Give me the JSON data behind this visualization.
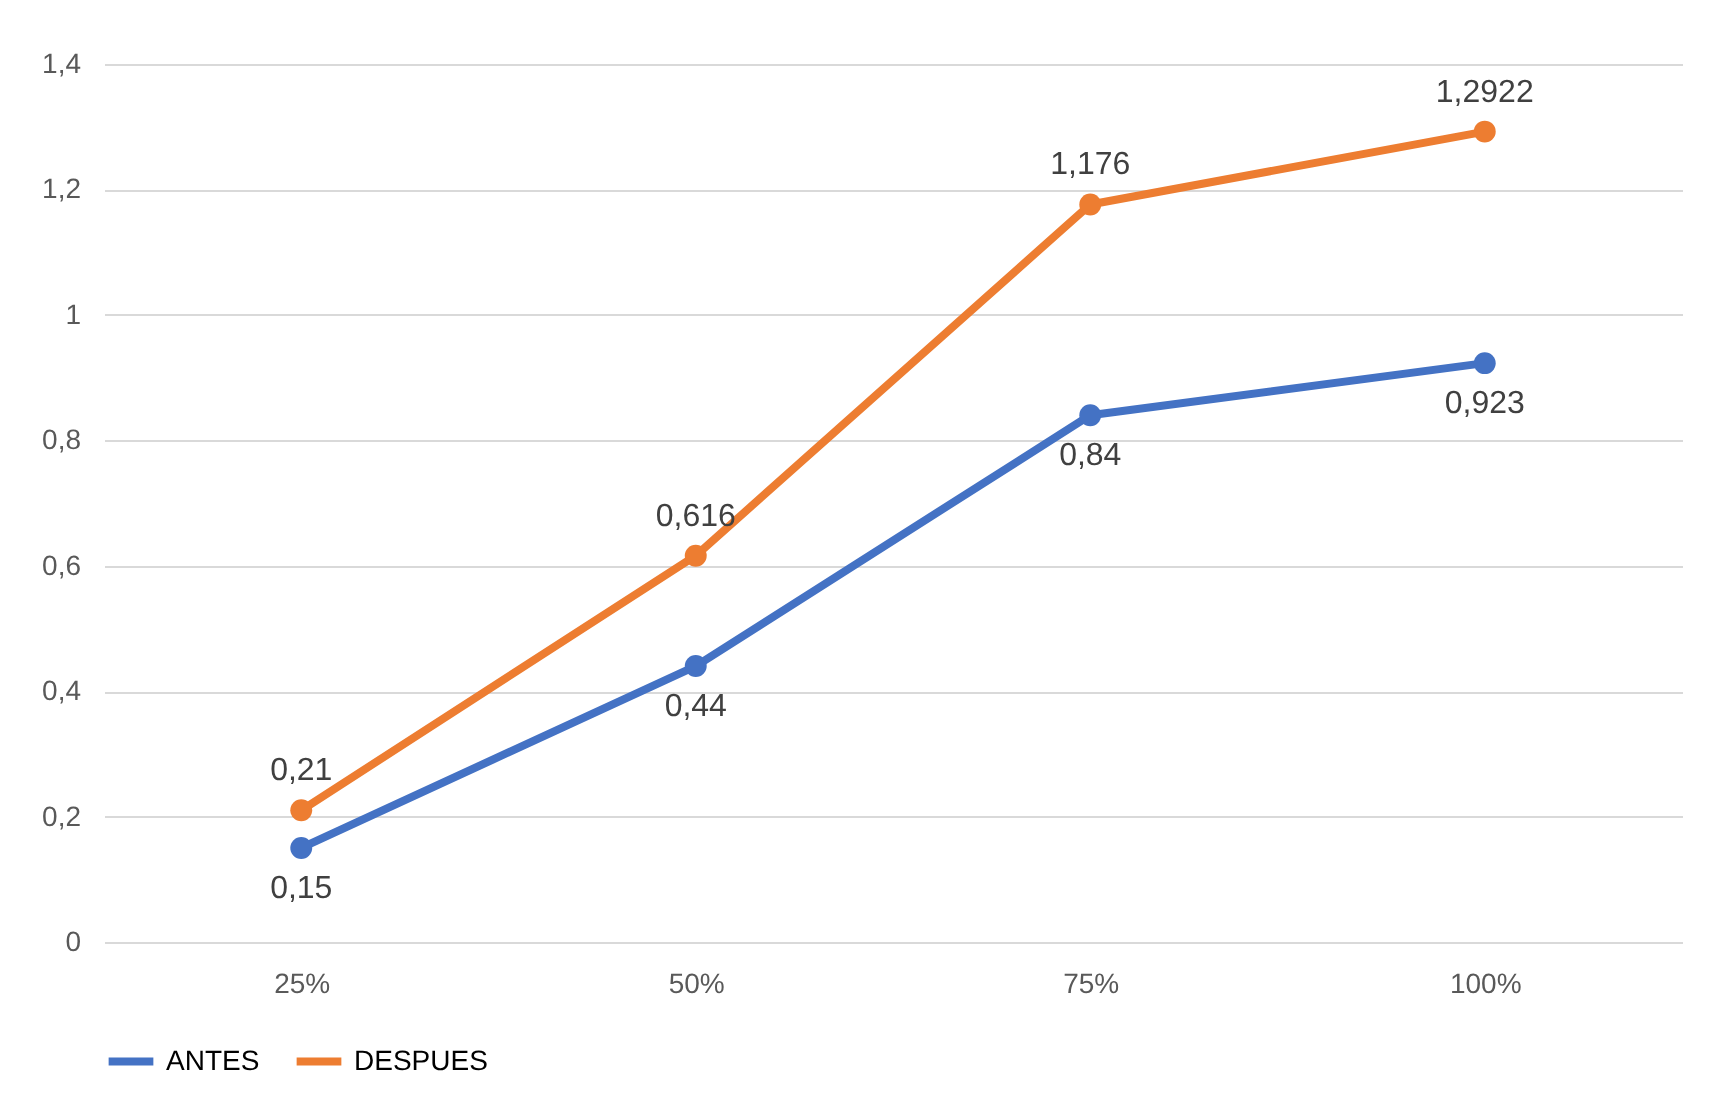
{
  "chart_data": {
    "type": "line",
    "categories": [
      "25%",
      "50%",
      "75%",
      "100%"
    ],
    "series": [
      {
        "name": "ANTES",
        "color": "#4472c4",
        "values": [
          0.15,
          0.44,
          0.84,
          0.923
        ],
        "value_labels": [
          "0,15",
          "0,44",
          "0,84",
          "0,923"
        ]
      },
      {
        "name": "DESPUES",
        "color": "#ed7d31",
        "values": [
          0.21,
          0.616,
          1.176,
          1.2922
        ],
        "value_labels": [
          "0,21",
          "0,616",
          "1,176",
          "1,2922"
        ]
      }
    ],
    "ylim": [
      0,
      1.4
    ],
    "yticks": [
      0,
      {
        "value": 0.2,
        "label": "0,2"
      },
      {
        "value": 0.4,
        "label": "0,4"
      },
      {
        "value": 0.6,
        "label": "0,6"
      },
      {
        "value": 0.8,
        "label": "0,8"
      },
      1,
      {
        "value": 1.2,
        "label": "1,2"
      },
      {
        "value": 1.4,
        "label": "1,4"
      }
    ],
    "grid": "y",
    "legend": "bottom",
    "marker": "circle",
    "line_style": "solid"
  }
}
